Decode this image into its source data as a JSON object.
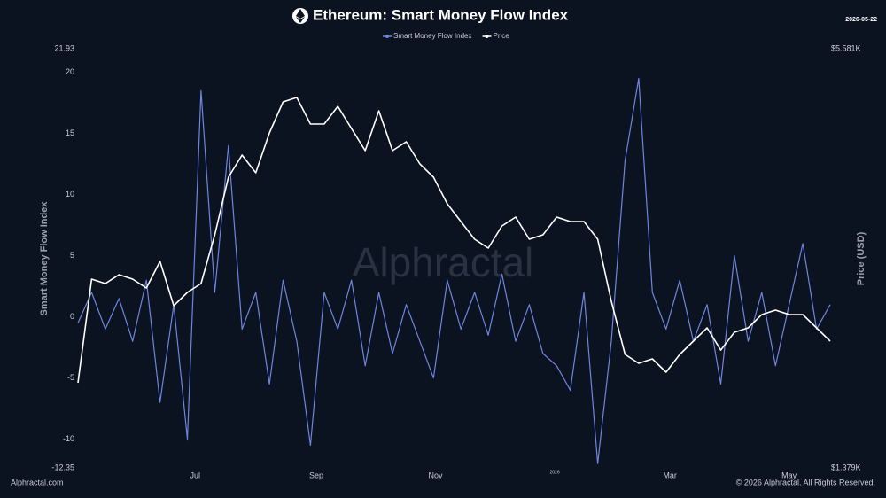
{
  "chart_data": {
    "type": "line",
    "title": "Ethereum: Smart Money Flow Index",
    "date": "2026-05-22",
    "y_label": "Smart Money Flow Index",
    "y2_label": "Price (USD)",
    "watermark": "Alphractal",
    "source": "Alphractal.com",
    "copyright": "© 2026 Alphractal. All Rights Reserved.",
    "x": [
      "2025-05-02",
      "2025-05-09",
      "2025-05-16",
      "2025-05-23",
      "2025-05-30",
      "2025-06-06",
      "2025-06-13",
      "2025-06-20",
      "2025-06-27",
      "2025-07-04",
      "2025-07-11",
      "2025-07-18",
      "2025-07-25",
      "2025-08-01",
      "2025-08-08",
      "2025-08-15",
      "2025-08-22",
      "2025-08-29",
      "2025-09-05",
      "2025-09-12",
      "2025-09-19",
      "2025-09-26",
      "2025-10-03",
      "2025-10-10",
      "2025-10-17",
      "2025-10-24",
      "2025-10-31",
      "2025-11-07",
      "2025-11-14",
      "2025-11-21",
      "2025-11-28",
      "2025-12-05",
      "2025-12-12",
      "2025-12-19",
      "2025-12-26",
      "2026-01-02",
      "2026-01-09",
      "2026-01-16",
      "2026-01-23",
      "2026-01-30",
      "2026-02-06",
      "2026-02-13",
      "2026-02-20",
      "2026-02-27",
      "2026-03-06",
      "2026-03-13",
      "2026-03-20",
      "2026-03-27",
      "2026-04-03",
      "2026-04-10",
      "2026-04-17",
      "2026-04-24",
      "2026-05-01",
      "2026-05-08",
      "2026-05-15",
      "2026-05-22"
    ],
    "xlim": [
      "2025-05-02",
      "2026-05-22"
    ],
    "xticks": [
      {
        "value": "2025-07-01",
        "label": "Jul"
      },
      {
        "value": "2025-09-01",
        "label": "Sep"
      },
      {
        "value": "2025-11-01",
        "label": "Nov"
      },
      {
        "value": "2026-01-01",
        "label": "2026"
      },
      {
        "value": "2026-03-01",
        "label": "Mar"
      },
      {
        "value": "2026-05-01",
        "label": "May"
      }
    ],
    "ylim": [
      -12.35,
      21.93
    ],
    "yticks": [
      -12.35,
      -10,
      -5,
      0,
      5,
      10,
      15,
      20,
      21.93
    ],
    "y2lim": [
      1379,
      5581
    ],
    "y2ticks": [
      {
        "value": 1379,
        "label": "$1.379K"
      },
      {
        "value": 5581,
        "label": "$5.581K"
      }
    ],
    "series": [
      {
        "name": "Smart Money Flow Index",
        "color": "#6f86e0",
        "values": [
          -0.5,
          2,
          -1,
          1.5,
          -2,
          3,
          -7,
          1,
          -10,
          18.5,
          2,
          14,
          -1,
          2,
          -5.5,
          3,
          -2,
          -10.5,
          2,
          -1,
          3,
          -4,
          2,
          -3,
          1,
          -2,
          -5,
          3,
          -1,
          2,
          -1.5,
          3.5,
          -2,
          1,
          -3,
          -4,
          -6,
          2,
          -12,
          -2,
          12.8,
          19.5,
          2,
          -1,
          3,
          -2,
          1,
          -5.5,
          5,
          -2,
          2,
          -4,
          1,
          6,
          -1,
          1
        ]
      },
      {
        "name": "Price",
        "color": "#ffffff",
        "axis": "y2",
        "values": [
          2232,
          3271,
          3227,
          3316,
          3271,
          3182,
          3449,
          3005,
          3138,
          3227,
          3715,
          4293,
          4515,
          4337,
          4737,
          5048,
          5092,
          4826,
          4826,
          5004,
          4781,
          4559,
          4959,
          4559,
          4648,
          4426,
          4293,
          4026,
          3849,
          3671,
          3582,
          3804,
          3893,
          3671,
          3715,
          3893,
          3849,
          3849,
          3671,
          3049,
          2516,
          2427,
          2472,
          2338,
          2516,
          2649,
          2783,
          2560,
          2738,
          2783,
          2916,
          2960,
          2916,
          2916,
          2783,
          2649
        ]
      }
    ]
  }
}
